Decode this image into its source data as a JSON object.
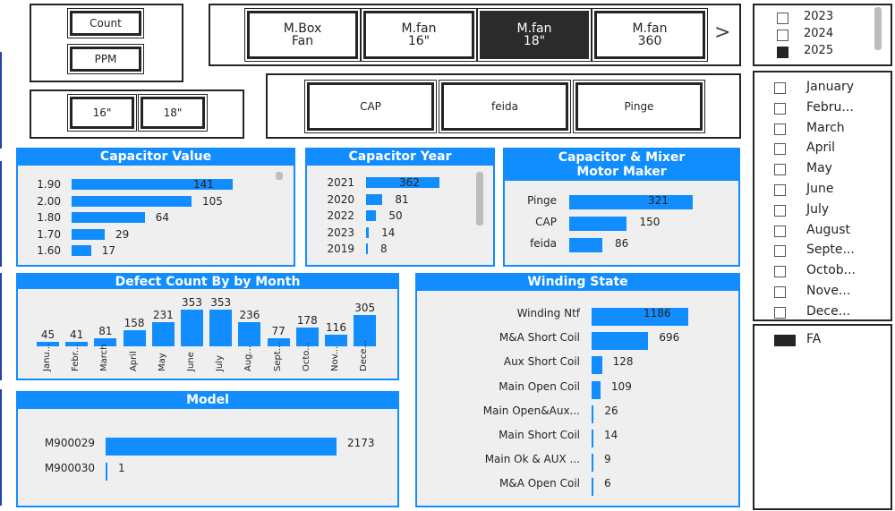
{
  "top_buttons": {
    "count": "Count",
    "ppm": "PPM",
    "size16": "16\"",
    "size18": "18\""
  },
  "model_tabs": [
    {
      "label": "M.Box\nFan",
      "selected": false
    },
    {
      "label": "M.fan\n16\"",
      "selected": false
    },
    {
      "label": "M.fan\n18\"",
      "selected": true
    },
    {
      "label": "M.fan\n360",
      "selected": false
    }
  ],
  "next_arrow": ">",
  "maker_buttons": [
    "CAP",
    "feida",
    "Pinge"
  ],
  "years": [
    {
      "label": "2023",
      "checked": false
    },
    {
      "label": "2024",
      "checked": false
    },
    {
      "label": "2025",
      "checked": true
    }
  ],
  "months": [
    {
      "label": "January",
      "checked": false
    },
    {
      "label": "Febru...",
      "checked": false
    },
    {
      "label": "March",
      "checked": false
    },
    {
      "label": "April",
      "checked": false
    },
    {
      "label": "May",
      "checked": false
    },
    {
      "label": "June",
      "checked": false
    },
    {
      "label": "July",
      "checked": false
    },
    {
      "label": "August",
      "checked": false
    },
    {
      "label": "Septe...",
      "checked": false
    },
    {
      "label": "Octob...",
      "checked": false
    },
    {
      "label": "Nove...",
      "checked": false
    },
    {
      "label": "Dece...",
      "checked": false
    }
  ],
  "fa_filter": {
    "label": "FA",
    "checked": true
  },
  "accent": "#118DFF",
  "capacitor_value": {
    "title": "Capacitor Value",
    "rows": [
      {
        "label": "1.90",
        "value": 141
      },
      {
        "label": "2.00",
        "value": 105
      },
      {
        "label": "1.80",
        "value": 64
      },
      {
        "label": "1.70",
        "value": 29
      },
      {
        "label": "1.60",
        "value": 17
      }
    ]
  },
  "capacitor_year": {
    "title": "Capacitor Year",
    "rows": [
      {
        "label": "2021",
        "value": 362
      },
      {
        "label": "2020",
        "value": 81
      },
      {
        "label": "2022",
        "value": 50
      },
      {
        "label": "2023",
        "value": 14
      },
      {
        "label": "2019",
        "value": 8
      }
    ]
  },
  "capacitor_maker": {
    "title": "Capacitor & Mixer\nMotor Maker",
    "rows": [
      {
        "label": "Pinge",
        "value": 321
      },
      {
        "label": "CAP",
        "value": 150
      },
      {
        "label": "feida",
        "value": 86
      }
    ]
  },
  "defect_by_month": {
    "title": "Defect Count By by Month",
    "rows": [
      {
        "label": "Janu...",
        "value": 45
      },
      {
        "label": "Febr...",
        "value": 41
      },
      {
        "label": "March",
        "value": 81
      },
      {
        "label": "April",
        "value": 158
      },
      {
        "label": "May",
        "value": 231
      },
      {
        "label": "June",
        "value": 353
      },
      {
        "label": "July",
        "value": 353
      },
      {
        "label": "Aug...",
        "value": 236
      },
      {
        "label": "Sept...",
        "value": 77
      },
      {
        "label": "Octo...",
        "value": 178
      },
      {
        "label": "Nov...",
        "value": 116
      },
      {
        "label": "Dece...",
        "value": 305
      }
    ]
  },
  "model": {
    "title": "Model",
    "rows": [
      {
        "label": "M900029",
        "value": 2173
      },
      {
        "label": "M900030",
        "value": 1
      }
    ]
  },
  "winding_state": {
    "title": "Winding State",
    "rows": [
      {
        "label": "Winding Ntf",
        "value": 1186
      },
      {
        "label": "M&A Short Coil",
        "value": 696
      },
      {
        "label": "Aux Short Coil",
        "value": 128
      },
      {
        "label": "Main Open Coil",
        "value": 109
      },
      {
        "label": "Main Open&Aux...",
        "value": 26
      },
      {
        "label": "Main Short Coil",
        "value": 14
      },
      {
        "label": "Main Ok & AUX ...",
        "value": 9
      },
      {
        "label": "M&A Open Coil",
        "value": 6
      }
    ]
  }
}
